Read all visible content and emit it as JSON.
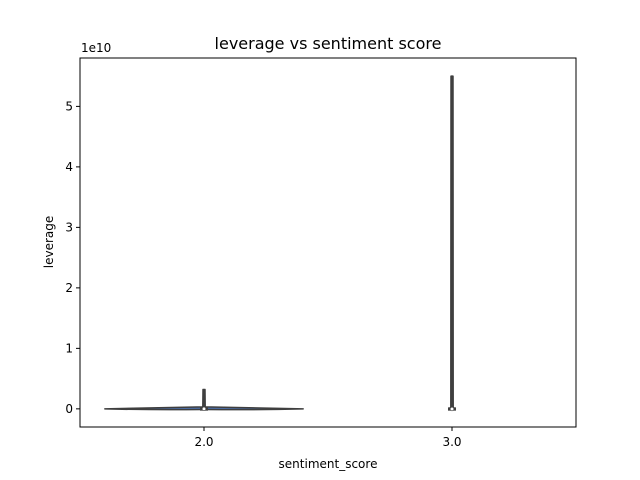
{
  "chart_data": {
    "type": "violin",
    "title": "leverage vs sentiment score",
    "xlabel": "sentiment_score",
    "ylabel": "leverage",
    "y_offset_text": "1e10",
    "y_scale_factor": 10000000000,
    "categories": [
      "2.0",
      "3.0"
    ],
    "ylim": [
      -0.3,
      5.8
    ],
    "yticks": [
      0,
      1,
      2,
      3,
      4,
      5
    ],
    "ytick_labels": [
      "0",
      "1",
      "2",
      "3",
      "4",
      "5"
    ],
    "grid": false,
    "legend": "none",
    "violins": [
      {
        "category": "2.0",
        "min": -0.01,
        "max": 0.32,
        "q1": -0.005,
        "median": 0.0,
        "q3": 0.01,
        "color": "#4c72b0"
      },
      {
        "category": "3.0",
        "min": -0.01,
        "max": 5.5,
        "q1": -0.005,
        "median": -0.002,
        "q3": 0.0,
        "color": "#dd8452"
      }
    ],
    "colors": {
      "axes": "#000000",
      "violin_edge": "#3f3f3f",
      "box": "#3f3f3f",
      "median": "#ffffff"
    }
  }
}
